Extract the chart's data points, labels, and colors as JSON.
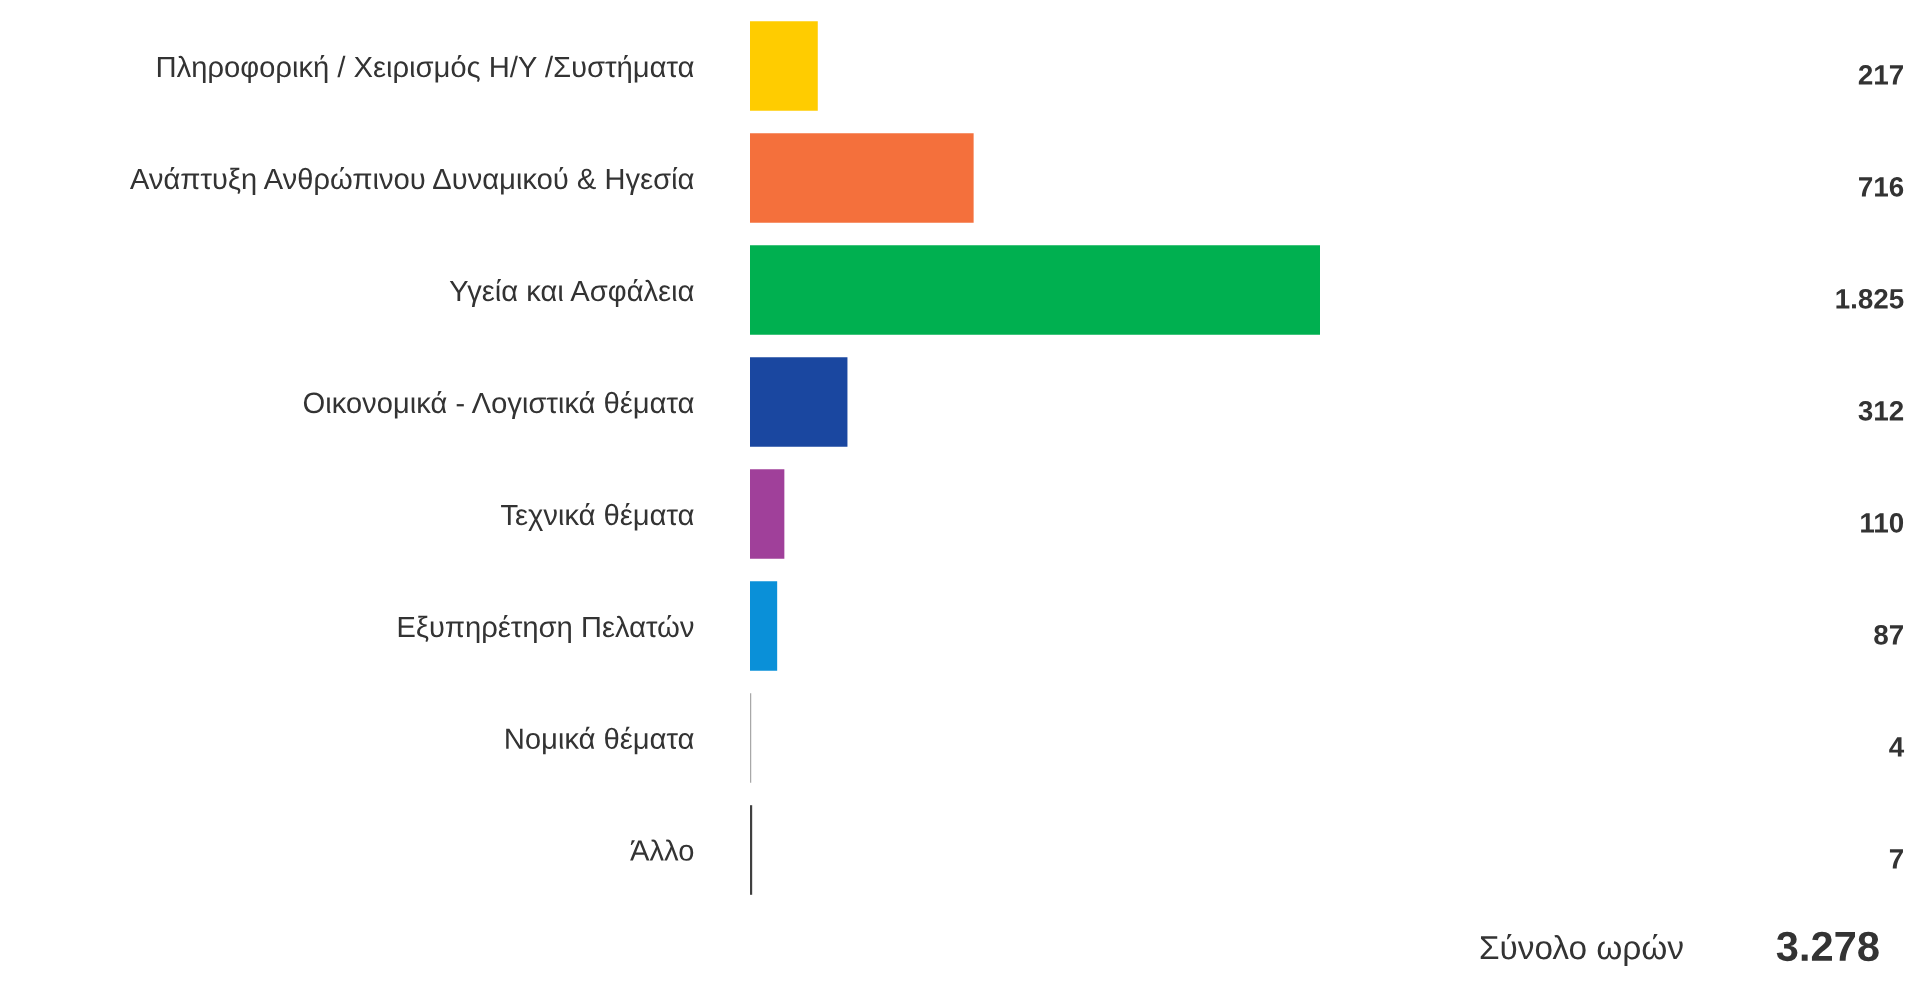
{
  "chart_data": {
    "type": "bar",
    "orientation": "horizontal",
    "categories": [
      "Πληροφορική / Χειρισμός Η/Υ /Συστήματα",
      "Ανάπτυξη Ανθρώπινου Δυναμικού & Ηγεσία",
      "Υγεία και Ασφάλεια",
      "Οικονομικά - Λογιστικά θέματα",
      "Τεχνικά θέματα",
      "Εξυπηρέτηση Πελατών",
      "Νομικά θέματα",
      "Άλλο"
    ],
    "values": [
      217,
      716,
      1825,
      312,
      110,
      87,
      4,
      7
    ],
    "colors": [
      "#ffcc00",
      "#f4703c",
      "#00b050",
      "#1a47a0",
      "#a0409a",
      "#0a90d8",
      "#a8a8a8",
      "#404040"
    ],
    "value_labels": [
      "217",
      "716",
      "1.825",
      "312",
      "110",
      "87",
      "4",
      "7"
    ],
    "annotations": [
      "Σύνολο ωρών",
      "3.278"
    ],
    "grid": false,
    "legend": false
  }
}
